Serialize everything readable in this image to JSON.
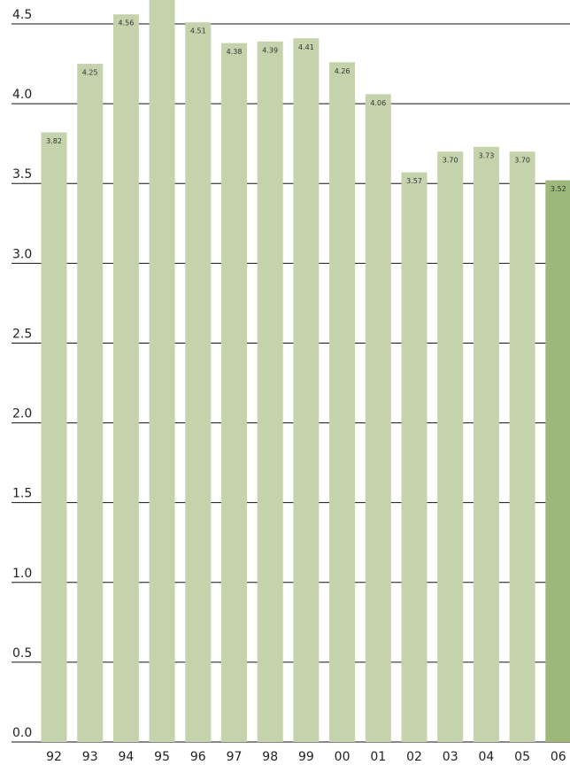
{
  "chart_data": {
    "type": "bar",
    "categories": [
      "92",
      "93",
      "94",
      "95",
      "96",
      "97",
      "98",
      "99",
      "00",
      "01",
      "02",
      "03",
      "04",
      "05",
      "06"
    ],
    "values": [
      3.82,
      4.25,
      4.56,
      4.7,
      4.51,
      4.38,
      4.39,
      4.41,
      4.26,
      4.06,
      3.57,
      3.7,
      3.73,
      3.7,
      3.52
    ],
    "value_labels": [
      "3.82",
      "4.25",
      "4.56",
      null,
      "4.51",
      "4.38",
      "4.39",
      "4.41",
      "4.26",
      "4.06",
      "3.57",
      "3.70",
      "3.73",
      "3.70",
      "3.52"
    ],
    "colors": [
      "#c5d3ad",
      "#c5d3ad",
      "#c5d3ad",
      "#c5d3ad",
      "#c5d3ad",
      "#c5d3ad",
      "#c5d3ad",
      "#c5d3ad",
      "#c5d3ad",
      "#c5d3ad",
      "#c5d3ad",
      "#c5d3ad",
      "#c5d3ad",
      "#c5d3ad",
      "#9db879"
    ],
    "ylim": [
      0,
      4.65
    ],
    "yticks": [
      {
        "value": 0,
        "label": "0.0"
      },
      0.5,
      {
        "value": 1,
        "label": "1.0"
      },
      1.5,
      {
        "value": 2,
        "label": "2.0"
      },
      2.5,
      {
        "value": 3,
        "label": "3.0"
      },
      3.5,
      {
        "value": 4,
        "label": "4.0"
      },
      4.5
    ],
    "grid": true
  }
}
